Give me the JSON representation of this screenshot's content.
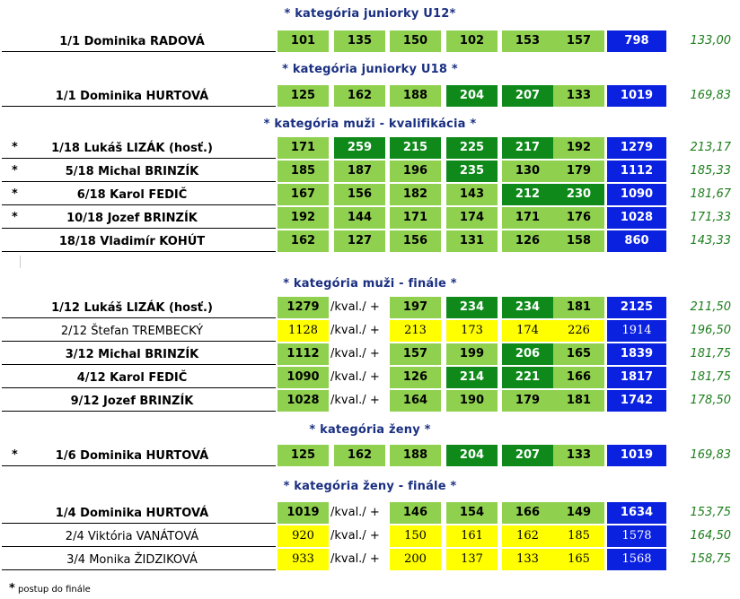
{
  "categories": [
    {
      "title": "* kategória juniorky U12*",
      "rows": [
        {
          "star": "",
          "place": "1/1",
          "name": "Dominika RADOVÁ",
          "bold": true,
          "kval": null,
          "cells": [
            [
              "101",
              "lg"
            ],
            [
              "135",
              "lg"
            ],
            [
              "150",
              "lg"
            ],
            [
              "102",
              "lg"
            ],
            [
              "153",
              "lg"
            ],
            [
              "157",
              "lg"
            ]
          ],
          "total": "798",
          "avg": "133,00"
        }
      ]
    },
    {
      "title": "* kategória juniorky U18 *",
      "rows": [
        {
          "star": "",
          "place": "1/1",
          "name": "Dominika HURTOVÁ",
          "bold": true,
          "kval": null,
          "cells": [
            [
              "125",
              "lg"
            ],
            [
              "162",
              "lg"
            ],
            [
              "188",
              "lg"
            ],
            [
              "204",
              "dg"
            ],
            [
              "207",
              "dg"
            ],
            [
              "133",
              "lg"
            ]
          ],
          "total": "1019",
          "avg": "169,83"
        }
      ]
    },
    {
      "title": "* kategória muži - kvalifikácia *",
      "rows": [
        {
          "star": "*",
          "place": "1/18",
          "name": "Lukáš LIZÁK (hosť.)",
          "bold": true,
          "kval": null,
          "cells": [
            [
              "171",
              "lg"
            ],
            [
              "259",
              "dg"
            ],
            [
              "215",
              "dg"
            ],
            [
              "225",
              "dg"
            ],
            [
              "217",
              "dg"
            ],
            [
              "192",
              "lg"
            ]
          ],
          "total": "1279",
          "avg": "213,17"
        },
        {
          "star": "*",
          "place": "5/18",
          "name": "Michal BRINZÍK",
          "bold": true,
          "kval": null,
          "cells": [
            [
              "185",
              "lg"
            ],
            [
              "187",
              "lg"
            ],
            [
              "196",
              "lg"
            ],
            [
              "235",
              "dg"
            ],
            [
              "130",
              "lg"
            ],
            [
              "179",
              "lg"
            ]
          ],
          "total": "1112",
          "avg": "185,33"
        },
        {
          "star": "*",
          "place": "6/18",
          "name": "Karol FEDIČ",
          "bold": true,
          "kval": null,
          "cells": [
            [
              "167",
              "lg"
            ],
            [
              "156",
              "lg"
            ],
            [
              "182",
              "lg"
            ],
            [
              "143",
              "lg"
            ],
            [
              "212",
              "dg"
            ],
            [
              "230",
              "dg"
            ]
          ],
          "total": "1090",
          "avg": "181,67"
        },
        {
          "star": "*",
          "place": "10/18",
          "name": "Jozef BRINZÍK",
          "bold": true,
          "kval": null,
          "cells": [
            [
              "192",
              "lg"
            ],
            [
              "144",
              "lg"
            ],
            [
              "171",
              "lg"
            ],
            [
              "174",
              "lg"
            ],
            [
              "171",
              "lg"
            ],
            [
              "176",
              "lg"
            ]
          ],
          "total": "1028",
          "avg": "171,33"
        },
        {
          "star": "",
          "place": "18/18",
          "name": "Vladimír KOHÚT",
          "bold": true,
          "kval": null,
          "cells": [
            [
              "162",
              "lg"
            ],
            [
              "127",
              "lg"
            ],
            [
              "156",
              "lg"
            ],
            [
              "131",
              "lg"
            ],
            [
              "126",
              "lg"
            ],
            [
              "158",
              "lg"
            ]
          ],
          "total": "860",
          "avg": "143,33"
        }
      ]
    },
    {
      "title": "* kategória muži - finále *",
      "rows": [
        {
          "star": "",
          "place": "1/12",
          "name": "Lukáš LIZÁK (hosť.)",
          "bold": true,
          "kval": [
            "1279",
            "lg"
          ],
          "kval_label": "/kval./ +",
          "cells": [
            [
              "197",
              "lg"
            ],
            [
              "234",
              "dg"
            ],
            [
              "234",
              "dg"
            ],
            [
              "181",
              "lg"
            ]
          ],
          "total": "2125",
          "avg": "211,50"
        },
        {
          "star": "",
          "place": "2/12",
          "name": "Štefan TREMBECKÝ",
          "bold": false,
          "kval": [
            "1128",
            "y"
          ],
          "kval_label": "/kval./ +",
          "cells": [
            [
              "213",
              "y"
            ],
            [
              "173",
              "y"
            ],
            [
              "174",
              "y"
            ],
            [
              "226",
              "y"
            ]
          ],
          "total": "1914",
          "avg": "196,50"
        },
        {
          "star": "",
          "place": "3/12",
          "name": "Michal BRINZÍK",
          "bold": true,
          "kval": [
            "1112",
            "lg"
          ],
          "kval_label": "/kval./ +",
          "cells": [
            [
              "157",
              "lg"
            ],
            [
              "199",
              "lg"
            ],
            [
              "206",
              "dg"
            ],
            [
              "165",
              "lg"
            ]
          ],
          "total": "1839",
          "avg": "181,75"
        },
        {
          "star": "",
          "place": "4/12",
          "name": "Karol FEDIČ",
          "bold": true,
          "kval": [
            "1090",
            "lg"
          ],
          "kval_label": "/kval./ +",
          "cells": [
            [
              "126",
              "lg"
            ],
            [
              "214",
              "dg"
            ],
            [
              "221",
              "dg"
            ],
            [
              "166",
              "lg"
            ]
          ],
          "total": "1817",
          "avg": "181,75"
        },
        {
          "star": "",
          "place": "9/12",
          "name": "Jozef BRINZÍK",
          "bold": true,
          "kval": [
            "1028",
            "lg"
          ],
          "kval_label": "/kval./ +",
          "cells": [
            [
              "164",
              "lg"
            ],
            [
              "190",
              "lg"
            ],
            [
              "179",
              "lg"
            ],
            [
              "181",
              "lg"
            ]
          ],
          "total": "1742",
          "avg": "178,50"
        }
      ]
    },
    {
      "title": "* kategória ženy *",
      "rows": [
        {
          "star": "*",
          "place": "1/6",
          "name": "Dominika HURTOVÁ",
          "bold": true,
          "kval": null,
          "cells": [
            [
              "125",
              "lg"
            ],
            [
              "162",
              "lg"
            ],
            [
              "188",
              "lg"
            ],
            [
              "204",
              "dg"
            ],
            [
              "207",
              "dg"
            ],
            [
              "133",
              "lg"
            ]
          ],
          "total": "1019",
          "avg": "169,83"
        }
      ]
    },
    {
      "title": "* kategória ženy - finále *",
      "rows": [
        {
          "star": "",
          "place": "1/4",
          "name": "Dominika HURTOVÁ",
          "bold": true,
          "kval": [
            "1019",
            "lg"
          ],
          "kval_label": "/kval./ +",
          "cells": [
            [
              "146",
              "lg"
            ],
            [
              "154",
              "lg"
            ],
            [
              "166",
              "lg"
            ],
            [
              "149",
              "lg"
            ]
          ],
          "total": "1634",
          "avg": "153,75"
        },
        {
          "star": "",
          "place": "2/4",
          "name": "Viktória VANÁTOVÁ",
          "bold": false,
          "kval": [
            "920",
            "y"
          ],
          "kval_label": "/kval./ +",
          "cells": [
            [
              "150",
              "y"
            ],
            [
              "161",
              "y"
            ],
            [
              "162",
              "y"
            ],
            [
              "185",
              "y"
            ]
          ],
          "total": "1578",
          "avg": "164,50"
        },
        {
          "star": "",
          "place": "3/4",
          "name": "Monika ŽIDZIKOVÁ",
          "bold": false,
          "kval": [
            "933",
            "y"
          ],
          "kval_label": "/kval./ +",
          "cells": [
            [
              "200",
              "y"
            ],
            [
              "137",
              "y"
            ],
            [
              "133",
              "y"
            ],
            [
              "165",
              "y"
            ]
          ],
          "total": "1568",
          "avg": "158,75"
        }
      ]
    }
  ],
  "footnote": {
    "star": "*",
    "text": "postup do finále"
  },
  "colors": {
    "light_green": "#8fd14f",
    "dark_green": "#0f8a1a",
    "yellow": "#ffff00",
    "blue": "#0b21e0",
    "avg_green": "#1b7d1b",
    "title_blue": "#1a2f80"
  }
}
